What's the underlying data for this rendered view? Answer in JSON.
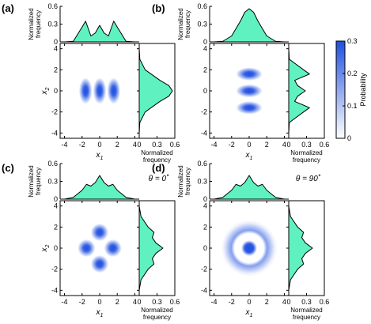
{
  "colors": {
    "density_max": "#1f4fe0",
    "density_min": "#ffffff",
    "marginal_fill": "#5ff2c0",
    "marginal_line": "#000000",
    "axis": "#000000"
  },
  "labels": {
    "normalized": "Normalized",
    "frequency": "frequency",
    "x1": "x",
    "x1_sub": "1",
    "x2": "x",
    "x2_sub": "2"
  },
  "colorbar": {
    "label": "Probability",
    "ticks": [
      "0",
      "0.1",
      "0.2",
      "0.3"
    ],
    "range": [
      0,
      0.3
    ]
  },
  "chart_data": [
    {
      "panel": "(a)",
      "type": "heatmap",
      "annotation": "",
      "xlabel": "x1",
      "ylabel": "x2",
      "xlim": [
        -4.5,
        4.5
      ],
      "ylim": [
        -4.5,
        4.5
      ],
      "xticks": [
        "-4",
        "-2",
        "0",
        "2",
        "4"
      ],
      "yticks": [
        "-4",
        "-2",
        "0",
        "2",
        "4"
      ],
      "top_marginal": {
        "ylim": [
          0,
          0.6
        ],
        "yticks": [
          "0",
          "0.3",
          "0.6"
        ],
        "x": [
          -4,
          -3,
          -2,
          -1.6,
          -1,
          -0.5,
          0,
          0.5,
          1,
          1.6,
          2,
          3,
          4
        ],
        "y": [
          0,
          0.01,
          0.25,
          0.35,
          0.1,
          0.15,
          0.28,
          0.15,
          0.1,
          0.35,
          0.25,
          0.01,
          0
        ]
      },
      "right_marginal": {
        "xlim": [
          0,
          0.6
        ],
        "xticks": [
          "0",
          "0.3",
          "0.6"
        ],
        "x2": [
          -4,
          -3,
          -2,
          -1,
          -0.5,
          0,
          0.5,
          1,
          2,
          3,
          4
        ],
        "freq": [
          0,
          0.01,
          0.1,
          0.35,
          0.5,
          0.56,
          0.5,
          0.35,
          0.1,
          0.01,
          0
        ]
      }
    },
    {
      "panel": "(b)",
      "type": "heatmap",
      "annotation": "",
      "xlabel": "x1",
      "ylabel": "",
      "xlim": [
        -4.5,
        4.5
      ],
      "ylim": [
        -4.5,
        4.5
      ],
      "xticks": [
        "-4",
        "-2",
        "0",
        "2",
        "4"
      ],
      "yticks": [
        "-4",
        "-2",
        "0",
        "2",
        "4"
      ],
      "top_marginal": {
        "ylim": [
          0,
          0.6
        ],
        "yticks": [
          "0",
          "0.3",
          "0.6"
        ],
        "x": [
          -4,
          -3,
          -2,
          -1,
          -0.5,
          0,
          0.5,
          1,
          2,
          3,
          4
        ],
        "y": [
          0,
          0.01,
          0.1,
          0.35,
          0.5,
          0.56,
          0.5,
          0.35,
          0.1,
          0.01,
          0
        ]
      },
      "right_marginal": {
        "xlim": [
          0,
          0.6
        ],
        "xticks": [
          "0",
          "0.3",
          "0.6"
        ],
        "x2": [
          -4,
          -3,
          -2,
          -1.6,
          -1,
          -0.5,
          0,
          0.5,
          1,
          1.6,
          2,
          3,
          4
        ],
        "freq": [
          0,
          0.01,
          0.25,
          0.35,
          0.1,
          0.15,
          0.28,
          0.15,
          0.1,
          0.35,
          0.25,
          0.01,
          0
        ]
      }
    },
    {
      "panel": "(c)",
      "type": "heatmap",
      "annotation": "θ = 0˚",
      "xlabel": "x1",
      "ylabel": "x2",
      "xlim": [
        -4.5,
        4.5
      ],
      "ylim": [
        -4.5,
        4.5
      ],
      "xticks": [
        "-4",
        "-2",
        "0",
        "2",
        "4"
      ],
      "yticks": [
        "-4",
        "-2",
        "0",
        "2",
        "4"
      ],
      "top_marginal": {
        "ylim": [
          0,
          0.6
        ],
        "yticks": [
          "0",
          "0.3",
          "0.6"
        ],
        "x": [
          -4,
          -3,
          -2,
          -1.5,
          -1,
          -0.5,
          0,
          0.5,
          1,
          1.5,
          2,
          3,
          4
        ],
        "y": [
          0,
          0.03,
          0.15,
          0.25,
          0.22,
          0.28,
          0.4,
          0.28,
          0.22,
          0.25,
          0.15,
          0.03,
          0
        ]
      },
      "right_marginal": {
        "xlim": [
          0,
          0.6
        ],
        "xticks": [
          "0",
          "0.3",
          "0.6"
        ],
        "x2": [
          -4,
          -3,
          -2,
          -1.5,
          -1,
          -0.5,
          0,
          0.5,
          1,
          1.5,
          2,
          3,
          4
        ],
        "freq": [
          0,
          0.03,
          0.15,
          0.25,
          0.22,
          0.28,
          0.4,
          0.28,
          0.22,
          0.25,
          0.15,
          0.03,
          0
        ]
      }
    },
    {
      "panel": "(d)",
      "type": "heatmap",
      "annotation": "θ = 90˚",
      "xlabel": "x1",
      "ylabel": "",
      "xlim": [
        -4.5,
        4.5
      ],
      "ylim": [
        -4.5,
        4.5
      ],
      "xticks": [
        "-4",
        "-2",
        "0",
        "2",
        "4"
      ],
      "yticks": [
        "-4",
        "-2",
        "0",
        "2",
        "4"
      ],
      "top_marginal": {
        "ylim": [
          0,
          0.6
        ],
        "yticks": [
          "0",
          "0.3",
          "0.6"
        ],
        "x": [
          -4,
          -3,
          -2,
          -1.5,
          -1,
          -0.5,
          0,
          0.5,
          1,
          1.5,
          2,
          3,
          4
        ],
        "y": [
          0,
          0.03,
          0.15,
          0.25,
          0.22,
          0.28,
          0.4,
          0.28,
          0.22,
          0.25,
          0.15,
          0.03,
          0
        ]
      },
      "right_marginal": {
        "xlim": [
          0,
          0.6
        ],
        "xticks": [
          "0",
          "0.3",
          "0.6"
        ],
        "x2": [
          -4,
          -3,
          -2,
          -1.5,
          -1,
          -0.5,
          0,
          0.5,
          1,
          1.5,
          2,
          3,
          4
        ],
        "freq": [
          0,
          0.03,
          0.15,
          0.25,
          0.22,
          0.28,
          0.4,
          0.28,
          0.22,
          0.25,
          0.15,
          0.03,
          0
        ]
      }
    }
  ]
}
